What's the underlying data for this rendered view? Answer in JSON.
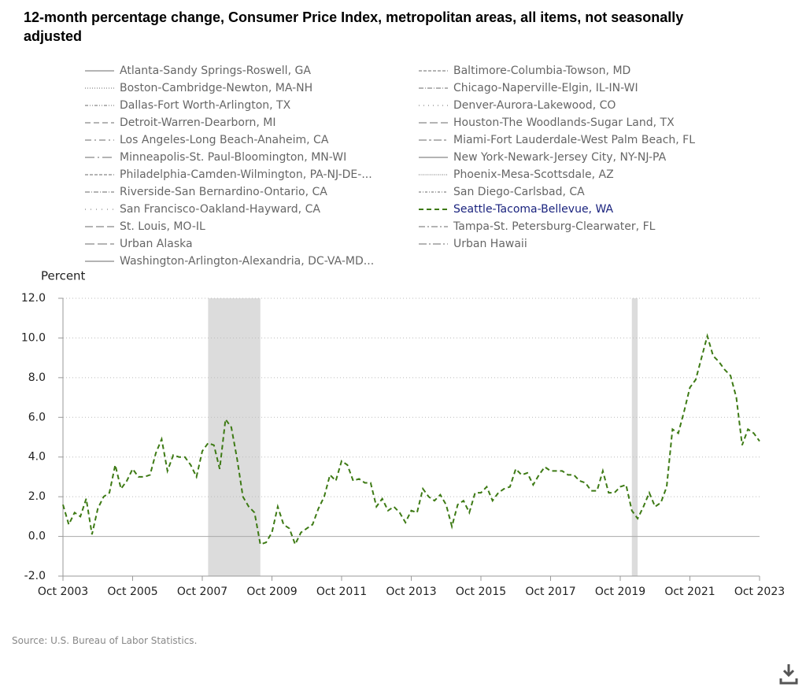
{
  "chart_data": {
    "type": "line",
    "title": "12-month percentage change, Consumer Price Index, metropolitan areas, all items, not seasonally adjusted",
    "y_label": "Percent",
    "source": "Source: U.S. Bureau of Labor Statistics.",
    "x": [
      "2003-10",
      "2003-12",
      "2004-02",
      "2004-04",
      "2004-06",
      "2004-08",
      "2004-10",
      "2004-12",
      "2005-02",
      "2005-04",
      "2005-06",
      "2005-08",
      "2005-10",
      "2005-12",
      "2006-02",
      "2006-04",
      "2006-06",
      "2006-08",
      "2006-10",
      "2006-12",
      "2007-02",
      "2007-04",
      "2007-06",
      "2007-08",
      "2007-10",
      "2007-12",
      "2008-02",
      "2008-04",
      "2008-06",
      "2008-08",
      "2008-10",
      "2008-12",
      "2009-02",
      "2009-04",
      "2009-06",
      "2009-08",
      "2009-10",
      "2009-12",
      "2010-02",
      "2010-04",
      "2010-06",
      "2010-08",
      "2010-10",
      "2010-12",
      "2011-02",
      "2011-04",
      "2011-06",
      "2011-08",
      "2011-10",
      "2011-12",
      "2012-02",
      "2012-04",
      "2012-06",
      "2012-08",
      "2012-10",
      "2012-12",
      "2013-02",
      "2013-04",
      "2013-06",
      "2013-08",
      "2013-10",
      "2013-12",
      "2014-02",
      "2014-04",
      "2014-06",
      "2014-08",
      "2014-10",
      "2014-12",
      "2015-02",
      "2015-04",
      "2015-06",
      "2015-08",
      "2015-10",
      "2015-12",
      "2016-02",
      "2016-04",
      "2016-06",
      "2016-08",
      "2016-10",
      "2016-12",
      "2017-02",
      "2017-04",
      "2017-06",
      "2017-08",
      "2017-10",
      "2017-12",
      "2018-02",
      "2018-04",
      "2018-06",
      "2018-08",
      "2018-10",
      "2018-12",
      "2019-02",
      "2019-04",
      "2019-06",
      "2019-08",
      "2019-10",
      "2019-12",
      "2020-02",
      "2020-04",
      "2020-06",
      "2020-08",
      "2020-10",
      "2020-12",
      "2021-02",
      "2021-04",
      "2021-06",
      "2021-08",
      "2021-10",
      "2021-12",
      "2022-02",
      "2022-04",
      "2022-06",
      "2022-08",
      "2022-10",
      "2022-12",
      "2023-02",
      "2023-04",
      "2023-06",
      "2023-08",
      "2023-10"
    ],
    "series": [
      {
        "name": "Atlanta-Sandy Springs-Roswell, GA",
        "color": "#888",
        "dash": "none"
      },
      {
        "name": "Baltimore-Columbia-Towson, MD",
        "color": "#888",
        "dash": "4,2"
      },
      {
        "name": "Boston-Cambridge-Newton, MA-NH",
        "color": "#888",
        "dash": "1,2"
      },
      {
        "name": "Chicago-Naperville-Elgin, IL-IN-WI",
        "color": "#888",
        "dash": "6,2,1,2"
      },
      {
        "name": "Dallas-Fort Worth-Arlington, TX",
        "color": "#888",
        "dash": "4,2,1,2,1,2"
      },
      {
        "name": "Denver-Aurora-Lakewood, CO",
        "color": "#888",
        "dash": "1,5"
      },
      {
        "name": "Detroit-Warren-Dearborn, MI",
        "color": "#888",
        "dash": "7,4"
      },
      {
        "name": "Houston-The Woodlands-Sugar Land, TX",
        "color": "#888",
        "dash": "10,4"
      },
      {
        "name": "Los Angeles-Long Beach-Anaheim, CA",
        "color": "#888",
        "dash": "8,4,2,4"
      },
      {
        "name": "Miami-Fort Lauderdale-West Palm Beach, FL",
        "color": "#888",
        "dash": "10,3,3,3"
      },
      {
        "name": "Minneapolis-St. Paul-Bloomington, MN-WI",
        "color": "#888",
        "dash": "12,4,2,4"
      },
      {
        "name": "New York-Newark-Jersey City, NY-NJ-PA",
        "color": "#888",
        "dash": "none"
      },
      {
        "name": "Philadelphia-Camden-Wilmington, PA-NJ-DE-...",
        "color": "#888",
        "dash": "4,2"
      },
      {
        "name": "Phoenix-Mesa-Scottsdale, AZ",
        "color": "#888",
        "dash": "1,1.5"
      },
      {
        "name": "Riverside-San Bernardino-Ontario, CA",
        "color": "#888",
        "dash": "6,2,1,2"
      },
      {
        "name": "San Diego-Carlsbad, CA",
        "color": "#888",
        "dash": "3,2,1,2"
      },
      {
        "name": "San Francisco-Oakland-Hayward, CA",
        "color": "#888",
        "dash": "1,6"
      },
      {
        "name": "Seattle-Tacoma-Bellevue, WA",
        "color": "#3d7a14",
        "dash": "6,4",
        "selected": true,
        "values": [
          1.6,
          0.6,
          1.2,
          1.0,
          1.9,
          0.1,
          1.4,
          2.0,
          2.2,
          3.6,
          2.4,
          2.8,
          3.4,
          3.0,
          3.0,
          3.1,
          4.2,
          4.9,
          3.3,
          4.1,
          4.0,
          4.0,
          3.6,
          3.0,
          4.3,
          4.7,
          4.6,
          3.4,
          5.9,
          5.5,
          3.9,
          2.0,
          1.5,
          1.2,
          -0.4,
          -0.3,
          0.2,
          1.5,
          0.6,
          0.4,
          -0.4,
          0.2,
          0.4,
          0.6,
          1.4,
          2.0,
          3.1,
          2.8,
          3.8,
          3.6,
          2.8,
          2.9,
          2.7,
          2.7,
          1.5,
          1.9,
          1.3,
          1.5,
          1.2,
          0.7,
          1.3,
          1.2,
          2.4,
          2.0,
          1.8,
          2.1,
          1.6,
          0.5,
          1.6,
          1.8,
          1.2,
          2.2,
          2.2,
          2.5,
          1.8,
          2.2,
          2.4,
          2.5,
          3.4,
          3.1,
          3.2,
          2.6,
          3.1,
          3.5,
          3.3,
          3.3,
          3.3,
          3.1,
          3.1,
          2.8,
          2.7,
          2.3,
          2.3,
          3.3,
          2.2,
          2.2,
          2.5,
          2.6,
          1.3,
          0.9,
          1.5,
          2.2,
          1.5,
          1.7,
          2.5,
          5.4,
          5.2,
          6.3,
          7.5,
          7.9,
          9.0,
          10.1,
          9.1,
          8.8,
          8.4,
          8.1,
          7.0,
          4.6,
          5.4,
          5.2,
          4.8
        ]
      },
      {
        "name": "St. Louis, MO-IL",
        "color": "#888",
        "dash": "10,4"
      },
      {
        "name": "Tampa-St. Petersburg-Clearwater, FL",
        "color": "#888",
        "dash": "8,3,2,3"
      },
      {
        "name": "Urban Alaska",
        "color": "#888",
        "dash": "12,4"
      },
      {
        "name": "Urban Hawaii",
        "color": "#888",
        "dash": "10,3,2,3"
      },
      {
        "name": "Washington-Arlington-Alexandria, DC-VA-MD...",
        "color": "#888",
        "dash": "none"
      }
    ],
    "recessions": [
      {
        "start": "2007-12",
        "end": "2009-06"
      },
      {
        "start": "2020-02",
        "end": "2020-04"
      }
    ],
    "xlim": [
      "2003-10",
      "2023-10"
    ],
    "xticks": [
      {
        "value": "2003-10",
        "label": "Oct 2003"
      },
      {
        "value": "2005-10",
        "label": "Oct 2005"
      },
      {
        "value": "2007-10",
        "label": "Oct 2007"
      },
      {
        "value": "2009-10",
        "label": "Oct 2009"
      },
      {
        "value": "2011-10",
        "label": "Oct 2011"
      },
      {
        "value": "2013-10",
        "label": "Oct 2013"
      },
      {
        "value": "2015-10",
        "label": "Oct 2015"
      },
      {
        "value": "2017-10",
        "label": "Oct 2017"
      },
      {
        "value": "2019-10",
        "label": "Oct 2019"
      },
      {
        "value": "2021-10",
        "label": "Oct 2021"
      },
      {
        "value": "2023-10",
        "label": "Oct 2023"
      }
    ],
    "ylim": [
      -2,
      12
    ],
    "yticks": [
      {
        "value": -2,
        "label": "-2.0"
      },
      {
        "value": 0,
        "label": "0.0"
      },
      {
        "value": 2,
        "label": "2.0"
      },
      {
        "value": 4,
        "label": "4.0"
      },
      {
        "value": 6,
        "label": "6.0"
      },
      {
        "value": 8,
        "label": "8.0"
      },
      {
        "value": 10,
        "label": "10.0"
      },
      {
        "value": 12,
        "label": "12.0"
      }
    ],
    "grid": true
  }
}
